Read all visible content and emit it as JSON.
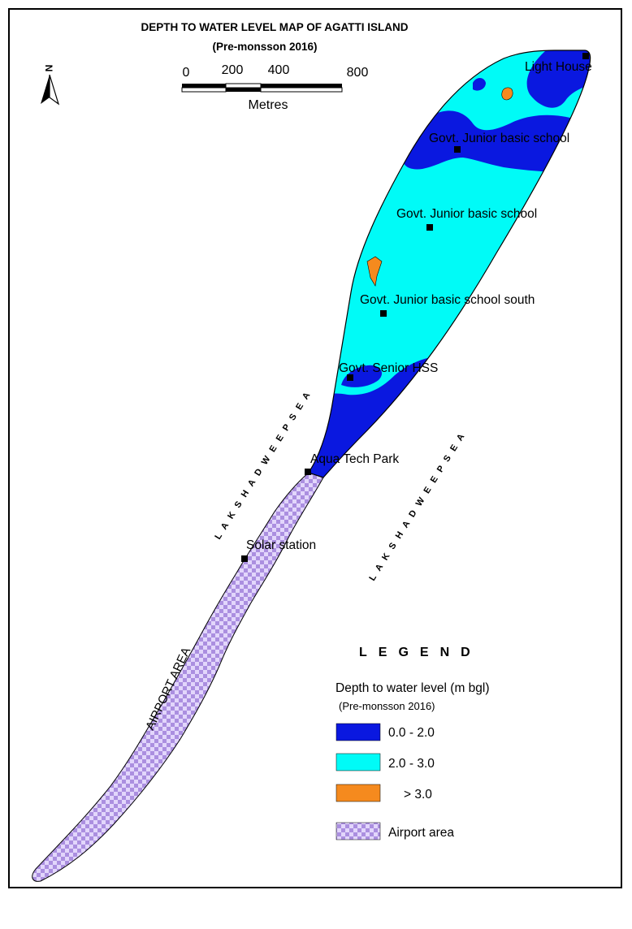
{
  "title": "DEPTH TO WATER LEVEL MAP OF AGATTI  ISLAND",
  "subtitle": "(Pre-monsson 2016)",
  "north_arrow": {
    "label": "N",
    "icon": "north-arrow-icon"
  },
  "scale": {
    "ticks": [
      "0",
      "200",
      "400",
      "800"
    ],
    "unit": "Metres"
  },
  "places": [
    {
      "name": "Light House"
    },
    {
      "name": "Govt. Junior basic school"
    },
    {
      "name": "Govt. Junior basic school"
    },
    {
      "name": "Govt. Junior basic school south"
    },
    {
      "name": "Govt. Senior HSS"
    },
    {
      "name": "Aqua Tech Park"
    },
    {
      "name": "Solar station"
    }
  ],
  "sea_labels": [
    "L A K S H A D W E E P  S E A",
    "L A K S H A D W E E P  S E A"
  ],
  "area_label": "AIRPORT AREA",
  "legend": {
    "heading": "LEGEND",
    "title": "Depth to water level (m bgl)",
    "subtitle": "(Pre-monsson 2016)",
    "items": [
      {
        "label": "0.0  -  2.0",
        "color": "#0a18e0"
      },
      {
        "label": "2.0  -  3.0",
        "color": "#00fbf7"
      },
      {
        "label": "> 3.0",
        "color": "#f58a1e"
      },
      {
        "label": "Airport area",
        "color": "#c4b0ee"
      }
    ]
  },
  "colors": {
    "shallow": "#0a18e0",
    "moderate": "#00fbf7",
    "deep": "#f58a1e",
    "airport_light": "#e2d6fb",
    "airport_dark": "#ab8fe0"
  }
}
